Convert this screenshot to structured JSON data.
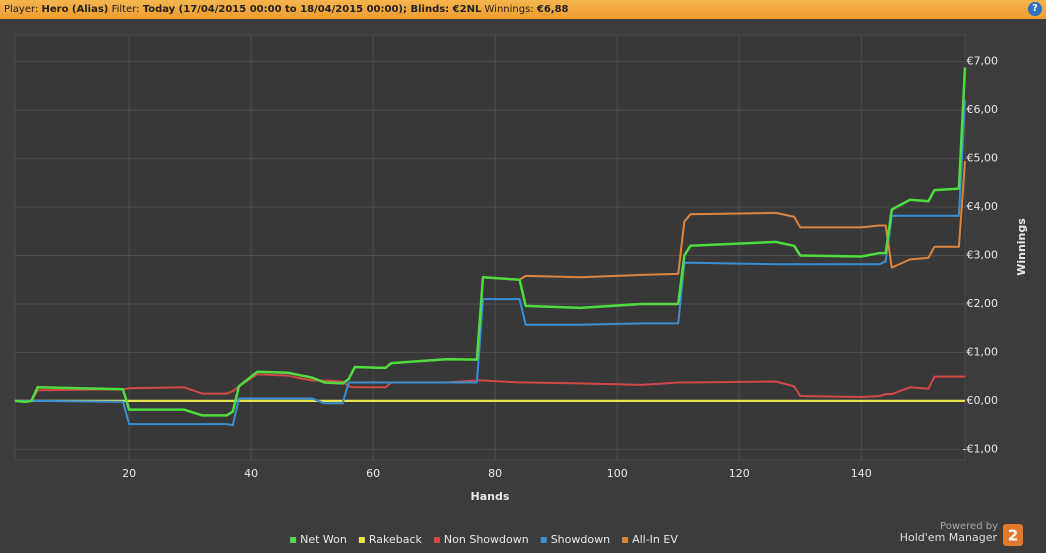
{
  "header": {
    "player_label": "Player:",
    "player": "Hero (Alias)",
    "filter_label": "Filter:",
    "filter": "Today (17/04/2015 00:00 to 18/04/2015 00:00); Blinds: €2NL",
    "winnings_label": "Winnings:",
    "winnings": "€6,88",
    "help": "?"
  },
  "footer": {
    "powered_by": "Powered by",
    "brand": "Hold'em Manager",
    "logo": "2"
  },
  "chart_data": {
    "type": "line",
    "x_label": "Hands",
    "y_label": "Winnings",
    "x": [
      1.3,
      3,
      4,
      5,
      19,
      20,
      29,
      32,
      36,
      37,
      38,
      41,
      46,
      50,
      52,
      55,
      56,
      57,
      62,
      63,
      72,
      77,
      78,
      84,
      85,
      94,
      104,
      110,
      111,
      112,
      126,
      129,
      130,
      140,
      143,
      144,
      145,
      148,
      151,
      152,
      156,
      157
    ],
    "series": [
      {
        "name": "Net Won",
        "color": "#4fdc3e",
        "values": [
          0,
          -0.02,
          0,
          0.28,
          0.24,
          -0.18,
          -0.18,
          -0.3,
          -0.3,
          -0.22,
          0.3,
          0.6,
          0.58,
          0.48,
          0.38,
          0.36,
          0.45,
          0.7,
          0.68,
          0.78,
          0.86,
          0.85,
          2.55,
          2.5,
          1.96,
          1.92,
          2.0,
          2.0,
          3.0,
          3.2,
          3.28,
          3.2,
          3.0,
          2.98,
          3.05,
          3.05,
          3.95,
          4.15,
          4.12,
          4.35,
          4.38,
          6.88
        ]
      },
      {
        "name": "Rakeback",
        "color": "#e6e64a",
        "values": [
          0,
          0,
          0,
          0,
          0,
          0,
          0,
          0,
          0,
          0,
          0,
          0,
          0,
          0,
          0,
          0,
          0,
          0,
          0,
          0,
          0,
          0,
          0,
          0,
          0,
          0,
          0,
          0,
          0,
          0,
          0,
          0,
          0,
          0,
          0,
          0,
          0,
          0,
          0,
          0,
          0,
          0
        ]
      },
      {
        "name": "Non Showdown",
        "color": "#d44848",
        "values": [
          0,
          0,
          0,
          0.22,
          0.24,
          0.26,
          0.28,
          0.15,
          0.15,
          0.2,
          0.3,
          0.55,
          0.52,
          0.42,
          0.42,
          0.4,
          0.3,
          0.28,
          0.28,
          0.38,
          0.38,
          0.42,
          0.42,
          0.38,
          0.38,
          0.36,
          0.33,
          0.38,
          0.38,
          0.38,
          0.4,
          0.3,
          0.1,
          0.08,
          0.1,
          0.14,
          0.14,
          0.28,
          0.25,
          0.5,
          0.5,
          0.5
        ]
      },
      {
        "name": "Showdown",
        "color": "#3a8fd4",
        "values": [
          0,
          0,
          0,
          0,
          -0.02,
          -0.48,
          -0.48,
          -0.48,
          -0.48,
          -0.5,
          0.05,
          0.05,
          0.05,
          0.05,
          -0.05,
          -0.05,
          0.38,
          0.38,
          0.38,
          0.38,
          0.38,
          0.38,
          2.1,
          2.1,
          1.57,
          1.57,
          1.6,
          1.6,
          2.85,
          2.85,
          2.82,
          2.82,
          2.82,
          2.82,
          2.82,
          2.88,
          3.82,
          3.82,
          3.82,
          3.82,
          3.82,
          6.2
        ]
      },
      {
        "name": "All-In EV",
        "color": "#e0843a",
        "values": [
          0,
          -0.02,
          0,
          0.28,
          0.24,
          -0.18,
          -0.18,
          -0.3,
          -0.3,
          -0.22,
          0.3,
          0.6,
          0.58,
          0.48,
          0.38,
          0.36,
          0.45,
          0.7,
          0.68,
          0.78,
          0.86,
          0.85,
          2.55,
          2.5,
          2.58,
          2.55,
          2.6,
          2.62,
          3.7,
          3.85,
          3.88,
          3.8,
          3.58,
          3.58,
          3.62,
          3.62,
          2.75,
          2.92,
          2.95,
          3.18,
          3.18,
          4.95
        ]
      }
    ],
    "xlim": [
      1.3,
      157
    ],
    "ylim": [
      -1.22,
      7.55
    ],
    "xticks": [
      20,
      40,
      60,
      80,
      100,
      120,
      140
    ],
    "yticks": [
      {
        "value": 7,
        "label": "€7,00"
      },
      {
        "value": 6,
        "label": "€6,00"
      },
      {
        "value": 5,
        "label": "€5,00"
      },
      {
        "value": 4,
        "label": "€4,00"
      },
      {
        "value": 3,
        "label": "€3,00"
      },
      {
        "value": 2,
        "label": "€2,00"
      },
      {
        "value": 1,
        "label": "€1,00"
      },
      {
        "value": 0,
        "label": "€0,00"
      },
      {
        "value": -1,
        "label": "-€1,00"
      }
    ],
    "grid": true,
    "y_axis_side": "right",
    "legend": "bottom"
  }
}
